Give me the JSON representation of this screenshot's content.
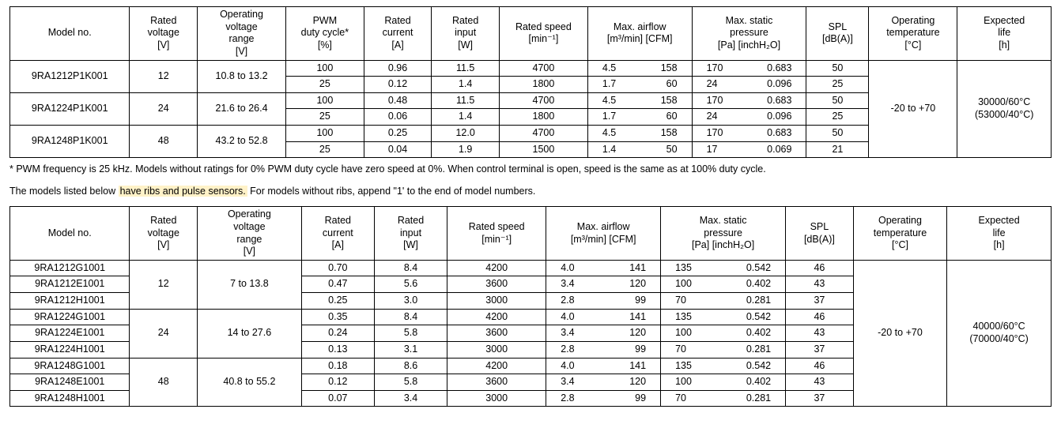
{
  "tableA": {
    "headers": {
      "model": "Model no.",
      "voltage": "Rated\nvoltage\n[V]",
      "ovr": "Operating\nvoltage\nrange\n[V]",
      "pwm": "PWM\nduty cycle*\n[%]",
      "current": "Rated\ncurrent\n[A]",
      "input": "Rated\ninput\n[W]",
      "speed": "Rated speed\n[min⁻¹]",
      "airflow": "Max. airflow\n[m³/min]   [CFM]",
      "statpr": "Max. static\npressure\n[Pa]     [inchH₂O]",
      "spl": "SPL\n[dB(A)]",
      "otemp": "Operating\ntemperature\n[°C]",
      "life": "Expected\nlife\n[h]"
    },
    "groups": [
      {
        "model": "9RA1212P1K001",
        "voltage": "12",
        "ovr": "10.8 to 13.2",
        "rows": [
          {
            "pwm": "100",
            "cur": "0.96",
            "inp": "11.5",
            "spd": "4700",
            "af1": "4.5",
            "af2": "158",
            "sp1": "170",
            "sp2": "0.683",
            "spl": "50"
          },
          {
            "pwm": "25",
            "cur": "0.12",
            "inp": "1.4",
            "spd": "1800",
            "af1": "1.7",
            "af2": "60",
            "sp1": "24",
            "sp2": "0.096",
            "spl": "25"
          }
        ]
      },
      {
        "model": "9RA1224P1K001",
        "voltage": "24",
        "ovr": "21.6 to 26.4",
        "rows": [
          {
            "pwm": "100",
            "cur": "0.48",
            "inp": "11.5",
            "spd": "4700",
            "af1": "4.5",
            "af2": "158",
            "sp1": "170",
            "sp2": "0.683",
            "spl": "50"
          },
          {
            "pwm": "25",
            "cur": "0.06",
            "inp": "1.4",
            "spd": "1800",
            "af1": "1.7",
            "af2": "60",
            "sp1": "24",
            "sp2": "0.096",
            "spl": "25"
          }
        ]
      },
      {
        "model": "9RA1248P1K001",
        "voltage": "48",
        "ovr": "43.2 to 52.8",
        "rows": [
          {
            "pwm": "100",
            "cur": "0.25",
            "inp": "12.0",
            "spd": "4700",
            "af1": "4.5",
            "af2": "158",
            "sp1": "170",
            "sp2": "0.683",
            "spl": "50"
          },
          {
            "pwm": "25",
            "cur": "0.04",
            "inp": "1.9",
            "spd": "1500",
            "af1": "1.4",
            "af2": "50",
            "sp1": "17",
            "sp2": "0.069",
            "spl": "21"
          }
        ]
      }
    ],
    "otemp": "-20 to +70",
    "life": "30000/60°C\n(53000/40°C)"
  },
  "noteA": "* PWM frequency is 25 kHz. Models without ratings for 0% PWM duty cycle have zero speed at 0%. When control terminal is open, speed is the same as at 100% duty cycle.",
  "introB_pre": "The models listed below ",
  "introB_hl": "have ribs and pulse sensors.",
  "introB_post": " For models without ribs, append \"1' to the end of model numbers.",
  "tableB": {
    "headers": {
      "model": "Model no.",
      "voltage": "Rated\nvoltage\n[V]",
      "ovr": "Operating\nvoltage\nrange\n[V]",
      "current": "Rated\ncurrent\n[A]",
      "input": "Rated\ninput\n[W]",
      "speed": "Rated speed\n[min⁻¹]",
      "airflow": "Max. airflow\n[m³/min]   [CFM]",
      "statpr": "Max. static\npressure\n[Pa]     [inchH₂O]",
      "spl": "SPL\n[dB(A)]",
      "otemp": "Operating\ntemperature\n[°C]",
      "life": "Expected\nlife\n[h]"
    },
    "groups": [
      {
        "voltage": "12",
        "ovr": "7   to 13.8",
        "rows": [
          {
            "model": "9RA1212G1001",
            "cur": "0.70",
            "inp": "8.4",
            "spd": "4200",
            "af1": "4.0",
            "af2": "141",
            "sp1": "135",
            "sp2": "0.542",
            "spl": "46"
          },
          {
            "model": "9RA1212E1001",
            "cur": "0.47",
            "inp": "5.6",
            "spd": "3600",
            "af1": "3.4",
            "af2": "120",
            "sp1": "100",
            "sp2": "0.402",
            "spl": "43"
          },
          {
            "model": "9RA1212H1001",
            "cur": "0.25",
            "inp": "3.0",
            "spd": "3000",
            "af1": "2.8",
            "af2": "99",
            "sp1": "70",
            "sp2": "0.281",
            "spl": "37"
          }
        ]
      },
      {
        "voltage": "24",
        "ovr": "14   to 27.6",
        "rows": [
          {
            "model": "9RA1224G1001",
            "cur": "0.35",
            "inp": "8.4",
            "spd": "4200",
            "af1": "4.0",
            "af2": "141",
            "sp1": "135",
            "sp2": "0.542",
            "spl": "46"
          },
          {
            "model": "9RA1224E1001",
            "cur": "0.24",
            "inp": "5.8",
            "spd": "3600",
            "af1": "3.4",
            "af2": "120",
            "sp1": "100",
            "sp2": "0.402",
            "spl": "43"
          },
          {
            "model": "9RA1224H1001",
            "cur": "0.13",
            "inp": "3.1",
            "spd": "3000",
            "af1": "2.8",
            "af2": "99",
            "sp1": "70",
            "sp2": "0.281",
            "spl": "37"
          }
        ]
      },
      {
        "voltage": "48",
        "ovr": "40.8 to 55.2",
        "rows": [
          {
            "model": "9RA1248G1001",
            "cur": "0.18",
            "inp": "8.6",
            "spd": "4200",
            "af1": "4.0",
            "af2": "141",
            "sp1": "135",
            "sp2": "0.542",
            "spl": "46"
          },
          {
            "model": "9RA1248E1001",
            "cur": "0.12",
            "inp": "5.8",
            "spd": "3600",
            "af1": "3.4",
            "af2": "120",
            "sp1": "100",
            "sp2": "0.402",
            "spl": "43"
          },
          {
            "model": "9RA1248H1001",
            "cur": "0.07",
            "inp": "3.4",
            "spd": "3000",
            "af1": "2.8",
            "af2": "99",
            "sp1": "70",
            "sp2": "0.281",
            "spl": "37"
          }
        ]
      }
    ],
    "otemp": "-20 to +70",
    "life": "40000/60°C\n(70000/40°C)"
  }
}
